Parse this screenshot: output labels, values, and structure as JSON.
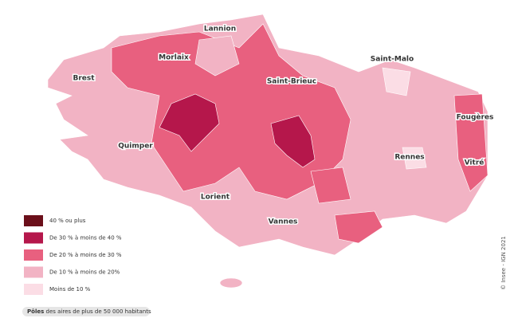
{
  "map": {
    "cities": [
      "Lannion",
      "Morlaix",
      "Brest",
      "Saint-Malo",
      "Saint-Brieuc",
      "Fougères",
      "Quimper",
      "Rennes",
      "Vitré",
      "Lorient",
      "Vannes"
    ],
    "legend": [
      {
        "label": "40 % ou plus",
        "color": "#6b0f1a"
      },
      {
        "label": "De 30 % à moins de 40 %",
        "color": "#b5174b"
      },
      {
        "label": "De 20 % à moins de 30 %",
        "color": "#e8607f"
      },
      {
        "label": "De 10 % à moins de 20%",
        "color": "#f2b3c4"
      },
      {
        "label": "Moins de 10 %",
        "color": "#fbdde5"
      }
    ],
    "footnote": {
      "bold": "Pôles",
      "text": "des aires de plus de 50 000 habitants"
    },
    "credit": "© Insee - IGN 2021"
  }
}
